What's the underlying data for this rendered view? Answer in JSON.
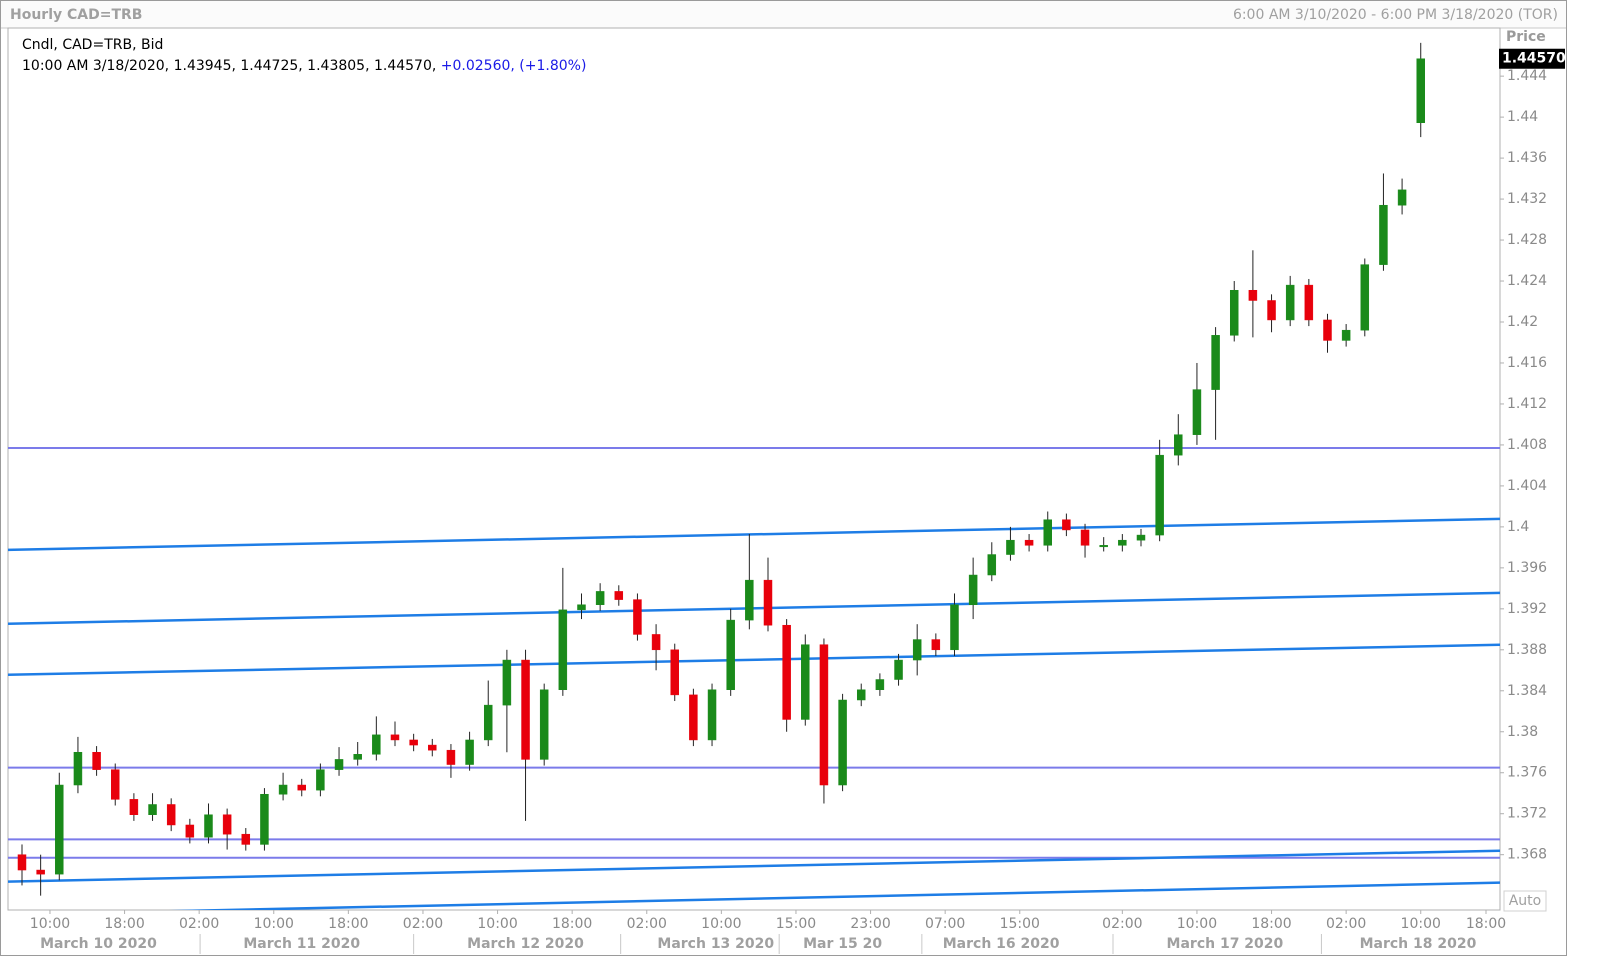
{
  "chart_data": {
    "type": "candlestick",
    "title": "Hourly CAD=TRB",
    "subtitle": "6:00 AM 3/10/2020 - 6:00 PM 3/18/2020 (TOR)",
    "legend": {
      "line1": "Cndl, CAD=TRB, Bid",
      "line2": "10:00 AM 3/18/2020, 1.43945, 1.44725, 1.43805, 1.44570,",
      "change": "+0.02560, (+1.80%)"
    },
    "y_label": "Price",
    "last_price_label": "1.44570",
    "scale_mode": "Auto",
    "up_color": "#1a8a1a",
    "down_color": "#e8000b",
    "x": [
      1,
      3,
      5,
      7,
      9,
      11,
      13,
      15,
      17,
      19,
      21,
      23,
      25,
      27,
      29,
      31,
      33,
      35,
      37,
      39,
      41,
      43,
      45,
      47,
      49,
      51,
      53,
      55,
      57,
      59,
      61,
      63,
      65,
      67,
      69,
      71,
      73,
      75,
      77,
      79,
      81,
      83,
      85,
      87,
      89,
      91,
      93,
      95,
      97,
      99,
      101,
      103,
      105,
      107,
      109,
      111,
      113,
      115,
      117,
      119,
      121,
      123,
      125,
      127,
      129,
      131,
      133,
      135,
      137,
      139,
      141,
      143,
      145,
      147,
      149,
      151
    ],
    "series": {
      "open": [
        1.368,
        1.3665,
        1.3661,
        1.3748,
        1.378,
        1.3763,
        1.3734,
        1.3719,
        1.3729,
        1.3709,
        1.3697,
        1.3719,
        1.37,
        1.369,
        1.3739,
        1.3748,
        1.3743,
        1.3763,
        1.3773,
        1.3778,
        1.3797,
        1.3792,
        1.3787,
        1.3782,
        1.3768,
        1.3792,
        1.3826,
        1.387,
        1.3773,
        1.3841,
        1.3919,
        1.3924,
        1.3937,
        1.3929,
        1.3895,
        1.388,
        1.3836,
        1.3792,
        1.3841,
        1.3909,
        1.3948,
        1.3904,
        1.3812,
        1.3885,
        1.3748,
        1.3831,
        1.3841,
        1.3851,
        1.387,
        1.389,
        1.388,
        1.3924,
        1.3953,
        1.3973,
        1.3987,
        1.3982,
        1.4007,
        1.3997,
        1.3982,
        1.3982,
        1.3987,
        1.3992,
        1.407,
        1.409,
        1.4134,
        1.4187,
        1.4231,
        1.4221,
        1.4202,
        1.4236,
        1.4202,
        1.4182,
        1.4192,
        1.4256,
        1.4314,
        1.43945
      ],
      "high": [
        1.369,
        1.368,
        1.376,
        1.3795,
        1.3786,
        1.3769,
        1.374,
        1.374,
        1.3735,
        1.3715,
        1.373,
        1.3725,
        1.3706,
        1.3745,
        1.376,
        1.3754,
        1.3769,
        1.3785,
        1.379,
        1.3815,
        1.381,
        1.3798,
        1.3793,
        1.3788,
        1.38,
        1.385,
        1.388,
        1.388,
        1.3847,
        1.396,
        1.3935,
        1.3945,
        1.3943,
        1.3935,
        1.3905,
        1.3886,
        1.3842,
        1.3847,
        1.392,
        1.3993,
        1.397,
        1.391,
        1.3895,
        1.3891,
        1.3837,
        1.3847,
        1.3857,
        1.3876,
        1.3905,
        1.3896,
        1.3935,
        1.397,
        1.3985,
        1.4,
        1.3993,
        1.4015,
        1.4013,
        1.4003,
        1.399,
        1.3993,
        1.3998,
        1.4085,
        1.411,
        1.416,
        1.4195,
        1.424,
        1.427,
        1.4227,
        1.4245,
        1.4242,
        1.4208,
        1.4198,
        1.4262,
        1.4345,
        1.434,
        1.44725
      ],
      "low": [
        1.365,
        1.364,
        1.3655,
        1.374,
        1.3757,
        1.3728,
        1.3713,
        1.3713,
        1.3703,
        1.3691,
        1.3691,
        1.3685,
        1.3684,
        1.3684,
        1.3733,
        1.3737,
        1.3737,
        1.3757,
        1.3767,
        1.3772,
        1.3786,
        1.3781,
        1.3776,
        1.3755,
        1.3762,
        1.3786,
        1.378,
        1.3713,
        1.3767,
        1.3835,
        1.391,
        1.3918,
        1.3923,
        1.3889,
        1.386,
        1.383,
        1.3786,
        1.3786,
        1.3835,
        1.39,
        1.3898,
        1.38,
        1.3806,
        1.373,
        1.3742,
        1.3825,
        1.3835,
        1.3845,
        1.3855,
        1.3874,
        1.3874,
        1.391,
        1.3947,
        1.3967,
        1.3976,
        1.3976,
        1.3991,
        1.397,
        1.3976,
        1.3976,
        1.3981,
        1.3986,
        1.406,
        1.408,
        1.4085,
        1.4181,
        1.4185,
        1.419,
        1.4196,
        1.4196,
        1.417,
        1.4176,
        1.4186,
        1.425,
        1.4305,
        1.43805
      ],
      "close": [
        1.3665,
        1.3661,
        1.3748,
        1.378,
        1.3763,
        1.3734,
        1.3719,
        1.3729,
        1.3709,
        1.3697,
        1.3719,
        1.37,
        1.369,
        1.3739,
        1.3748,
        1.3743,
        1.3763,
        1.3773,
        1.3778,
        1.3797,
        1.3792,
        1.3787,
        1.3782,
        1.3768,
        1.3792,
        1.3826,
        1.387,
        1.3773,
        1.3841,
        1.3919,
        1.3924,
        1.3937,
        1.3929,
        1.3895,
        1.388,
        1.3836,
        1.3792,
        1.3841,
        1.3909,
        1.3948,
        1.3904,
        1.3812,
        1.3885,
        1.3748,
        1.3831,
        1.3841,
        1.3851,
        1.387,
        1.389,
        1.388,
        1.3924,
        1.3953,
        1.3973,
        1.3987,
        1.3982,
        1.4007,
        1.3997,
        1.3982,
        1.3982,
        1.3987,
        1.3992,
        1.407,
        1.409,
        1.4134,
        1.4187,
        1.4231,
        1.4221,
        1.4202,
        1.4236,
        1.4202,
        1.4182,
        1.4192,
        1.4256,
        1.4314,
        1.4329,
        1.4457
      ]
    },
    "xlim": [
      -0.5,
      159.5
    ],
    "xticks": [
      {
        "value": 4,
        "label": "10:00"
      },
      {
        "value": 12,
        "label": "18:00"
      },
      {
        "value": 20,
        "label": "02:00"
      },
      {
        "value": 28,
        "label": "10:00"
      },
      {
        "value": 36,
        "label": "18:00"
      },
      {
        "value": 44,
        "label": "02:00"
      },
      {
        "value": 52,
        "label": "10:00"
      },
      {
        "value": 60,
        "label": "18:00"
      },
      {
        "value": 68,
        "label": "02:00"
      },
      {
        "value": 76,
        "label": "10:00"
      },
      {
        "value": 84,
        "label": "15:00"
      },
      {
        "value": 92,
        "label": "23:00"
      },
      {
        "value": 100,
        "label": "07:00"
      },
      {
        "value": 108,
        "label": "15:00"
      },
      {
        "value": 119,
        "label": "02:00"
      },
      {
        "value": 127,
        "label": "10:00"
      },
      {
        "value": 135,
        "label": "18:00"
      },
      {
        "value": 143,
        "label": "02:00"
      },
      {
        "value": 151,
        "label": "10:00"
      },
      {
        "value": 158,
        "label": "18:00"
      }
    ],
    "date_ticks": [
      {
        "value": 9.2,
        "label": "March 10 2020"
      },
      {
        "value": 31,
        "label": "March 11 2020"
      },
      {
        "value": 55,
        "label": "March 12 2020"
      },
      {
        "value": 75.4,
        "label": "March 13 2020"
      },
      {
        "value": 89,
        "label": "Mar 15 20"
      },
      {
        "value": 106,
        "label": "March 16 2020"
      },
      {
        "value": 130,
        "label": "March 17 2020"
      },
      {
        "value": 150.7,
        "label": "March 18 2020"
      }
    ],
    "ylim": [
      1.3626,
      1.4487
    ],
    "yticks": [
      1.368,
      1.372,
      1.376,
      1.38,
      1.384,
      1.388,
      1.392,
      1.396,
      1.4,
      1.404,
      1.408,
      1.412,
      1.416,
      1.42,
      1.424,
      1.428,
      1.432,
      1.436,
      1.44,
      1.444
    ],
    "horizontal_lines": [
      1.4077,
      1.3765,
      1.3695,
      1.3677
    ],
    "horizontal_line_color": "#7b7bea",
    "trend_lines": [
      {
        "start": 1.39776,
        "end": 1.40078
      },
      {
        "start": 1.39054,
        "end": 1.39356
      },
      {
        "start": 1.38556,
        "end": 1.38849
      },
      {
        "start": 1.36537,
        "end": 1.36839
      },
      {
        "start": 1.36214,
        "end": 1.36527
      }
    ],
    "trend_line_color": "#1e7de6"
  }
}
